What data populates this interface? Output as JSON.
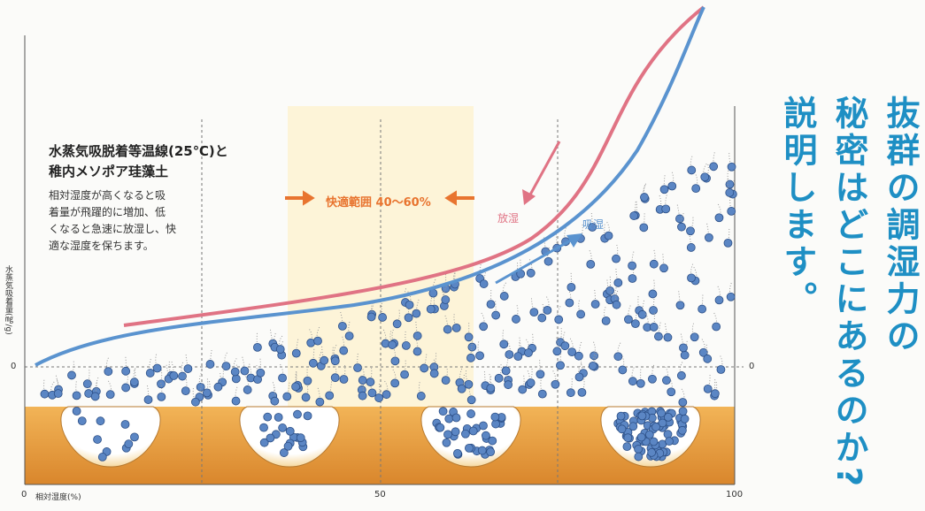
{
  "diagram": {
    "title_lines": [
      "水蒸気吸脱着等温線(25℃)と",
      "稚内メソポア珪藻土"
    ],
    "description_lines": [
      "相対湿度が高くなると吸",
      "着量が飛躍的に増加、低",
      "くなると急速に放湿し、快",
      "適な湿度を保ちます。"
    ],
    "comfort_range": "快適範囲 40〜60%",
    "release_label": "放湿",
    "absorb_label": "吸湿",
    "y_axis_label": "水蒸気吸着量(㎎/g)",
    "y_zero_left": "0",
    "y_zero_right": "0",
    "x_axis_label": "相対湿度(%)",
    "x_ticks": [
      "0",
      "50",
      "100"
    ]
  },
  "heading_lines": [
    "抜群の調湿力の",
    "秘密はどこにあるのか?",
    "説明します。"
  ]
}
